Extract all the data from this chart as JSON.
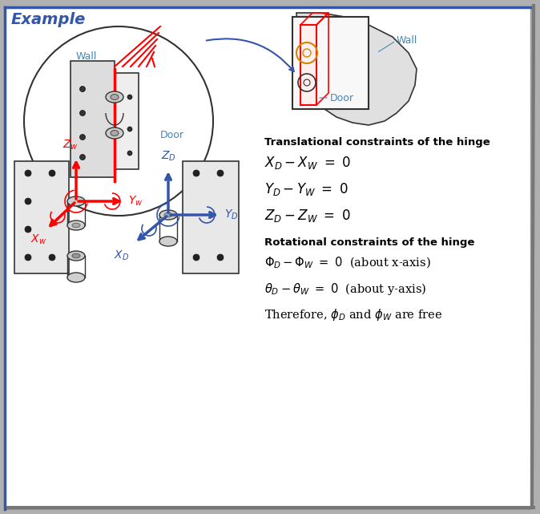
{
  "title": "Example",
  "bg_color": "#ffffff",
  "border_color": "#aaaaaa",
  "blue_color": "#3355aa",
  "red_color": "#cc0000",
  "cyan_text": "#4488bb",
  "black": "#000000",
  "constraints_title": "Translational constraints of the hinge",
  "rot_title": "Rotational constraints of the hinge"
}
